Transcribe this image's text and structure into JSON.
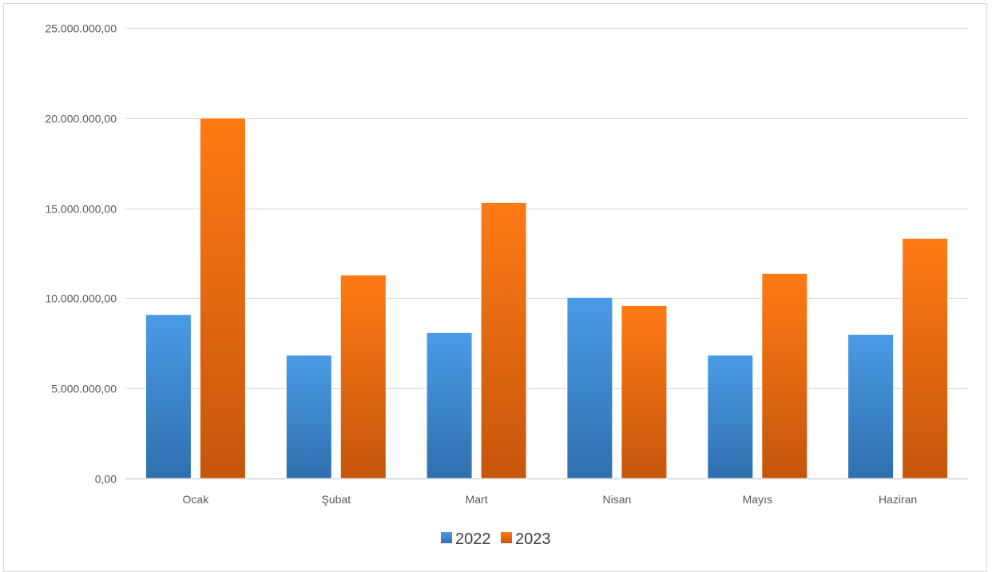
{
  "chart_data": {
    "type": "bar",
    "title": "",
    "xlabel": "",
    "ylabel": "",
    "categories": [
      "Ocak",
      "Şubat",
      "Mart",
      "Nisan",
      "Mayıs",
      "Haziran"
    ],
    "series": [
      {
        "name": "2022",
        "color": "#3c87d0",
        "values": [
          9100000,
          6850000,
          8100000,
          10050000,
          6850000,
          8000000
        ]
      },
      {
        "name": "2023",
        "color": "#ec6f16",
        "values": [
          20000000,
          11300000,
          15320000,
          9600000,
          11380000,
          13330000
        ]
      }
    ],
    "ylim": [
      0,
      25000000
    ],
    "yticks": [
      0,
      5000000,
      10000000,
      15000000,
      20000000,
      25000000
    ],
    "ytick_labels": [
      "0,00",
      "5.000.000,00",
      "10.000.000,00",
      "15.000.000,00",
      "20.000.000,00",
      "25.000.000,00"
    ],
    "grid": true,
    "legend": "bottom"
  }
}
